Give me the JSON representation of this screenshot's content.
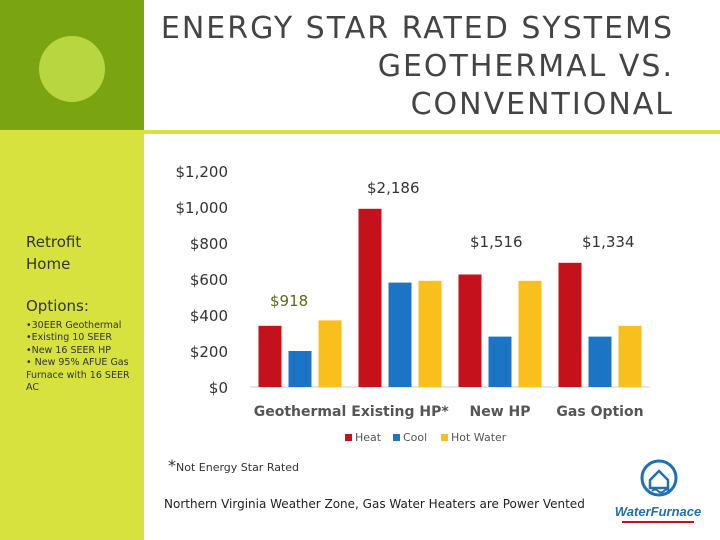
{
  "slide": {
    "title_lines": [
      "ENERGY STAR RATED SYSTEMS",
      "GEOTHERMAL VS.",
      "CONVENTIONAL"
    ],
    "sidebar": {
      "retrofit_label": "Retrofit Home",
      "options_label": "Options:",
      "options": [
        "•30EER Geothermal",
        "•Existing 10 SEER",
        "•New 16 SEER HP",
        "• New 95% AFUE Gas Furnace with 16 SEER AC"
      ]
    },
    "annotations": [
      "$2,186",
      "$1,516",
      "$1,334",
      "$918"
    ],
    "footnote_star": "*",
    "footnote": "Not Energy Star Rated",
    "note": "Northern Virginia Weather Zone, Gas Water Heaters are Power Vented",
    "logo_text": "WaterFurnace"
  },
  "colors": {
    "heat": "#c4111b",
    "cool": "#1b74c4",
    "hot_water": "#f9bf1c",
    "side_dark": "#7aa412",
    "side_light": "#d7e23f",
    "logo_blue": "#1f6fb2"
  },
  "chart_data": {
    "type": "bar",
    "categories": [
      "Geothermal",
      "Existing HP*",
      "New HP",
      "Gas Option"
    ],
    "series": [
      {
        "name": "Heat",
        "values": [
          340,
          990,
          625,
          690
        ]
      },
      {
        "name": "Cool",
        "values": [
          200,
          580,
          280,
          280
        ]
      },
      {
        "name": "Hot Water",
        "values": [
          370,
          590,
          590,
          340
        ]
      }
    ],
    "yticks": [
      "$0",
      "$200",
      "$400",
      "$600",
      "$800",
      "$1,000",
      "$1,200"
    ],
    "ylim": [
      0,
      1200
    ],
    "legend_position": "bottom",
    "grid": false,
    "title": "",
    "xlabel": "",
    "ylabel": ""
  }
}
